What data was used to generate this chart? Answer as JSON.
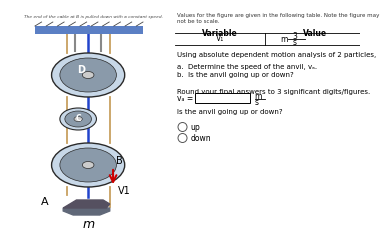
{
  "title_text": "The end of the cable at B is pulled down with a constant speed.",
  "table_header": "Values for the figure are given in the following table. Note the figure may not be to scale.",
  "col1_header": "Variable",
  "col2_header": "Value",
  "row1_var": "V₁",
  "row1_val": "3",
  "row1_unit_top": "m",
  "row1_unit_bot": "s",
  "analysis_text": "Using absolute dependent motion analysis of 2 particles,",
  "part_a": "a.  Determine the speed of the anvil, vₐ.",
  "part_b": "b.  Is the anvil going up or down?",
  "round_text": "Round your final answers to 3 significant digits/figures.",
  "va_label": "vₐ =",
  "va_unit_top": "m",
  "va_unit_bot": "s",
  "direction_label": "Is the anvil going up or down?",
  "up_option": "up",
  "down_option": "down",
  "label_A": "A",
  "label_B": "B",
  "label_C": "C",
  "label_D": "D",
  "label_m": "m",
  "label_V1": "V1",
  "bg_color": "#ffffff",
  "ceiling_color": "#5b7fc4",
  "pulley_face": "#8a9aaa",
  "pulley_edge": "#2a2a2a",
  "pulley_rim": "#c8d8e8",
  "rope_color": "#c8a060",
  "blue_rope_color": "#2244cc",
  "red_arrow_color": "#cc0000",
  "anvil_color": "#606878"
}
